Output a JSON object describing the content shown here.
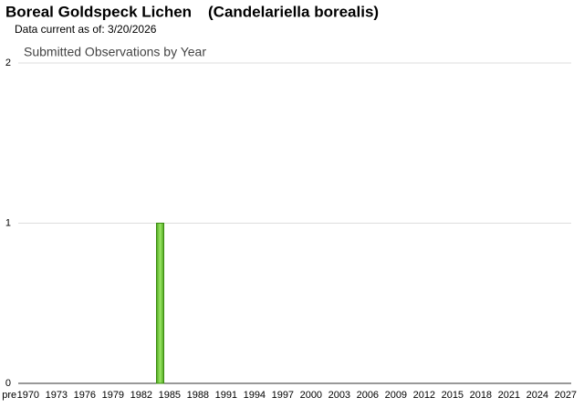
{
  "chart_data": {
    "type": "bar",
    "title": "Boreal Goldspeck Lichen",
    "scientific_name": "(Candelariella borealis)",
    "subtitle": "Data current as of: 3/20/2026",
    "chart_title": "Submitted Observations by Year",
    "categories": [
      "pre",
      null,
      "1970",
      null,
      null,
      "1973",
      null,
      null,
      "1976",
      null,
      null,
      "1979",
      null,
      null,
      "1982",
      null,
      null,
      "1985",
      null,
      null,
      "1988",
      null,
      null,
      "1991",
      null,
      null,
      "1994",
      null,
      null,
      "1997",
      null,
      null,
      "2000",
      null,
      null,
      "2003",
      null,
      null,
      "2006",
      null,
      null,
      "2009",
      null,
      null,
      "2012",
      null,
      null,
      "2015",
      null,
      null,
      "2018",
      null,
      null,
      "2021",
      null,
      null,
      "2024",
      null,
      null,
      "2027"
    ],
    "values": [
      0,
      0,
      0,
      0,
      0,
      0,
      0,
      0,
      0,
      0,
      0,
      0,
      0,
      0,
      0,
      0,
      1,
      0,
      0,
      0,
      0,
      0,
      0,
      0,
      0,
      0,
      0,
      0,
      0,
      0,
      0,
      0,
      0,
      0,
      0,
      0,
      0,
      0,
      0,
      0,
      0,
      0,
      0,
      0,
      0,
      0,
      0,
      0,
      0,
      0,
      0,
      0,
      0,
      0,
      0,
      0,
      0,
      0,
      0,
      0
    ],
    "color": "#66cc33",
    "ylim": [
      0,
      2
    ],
    "yticks": [
      0,
      1,
      2
    ],
    "grid": true
  }
}
